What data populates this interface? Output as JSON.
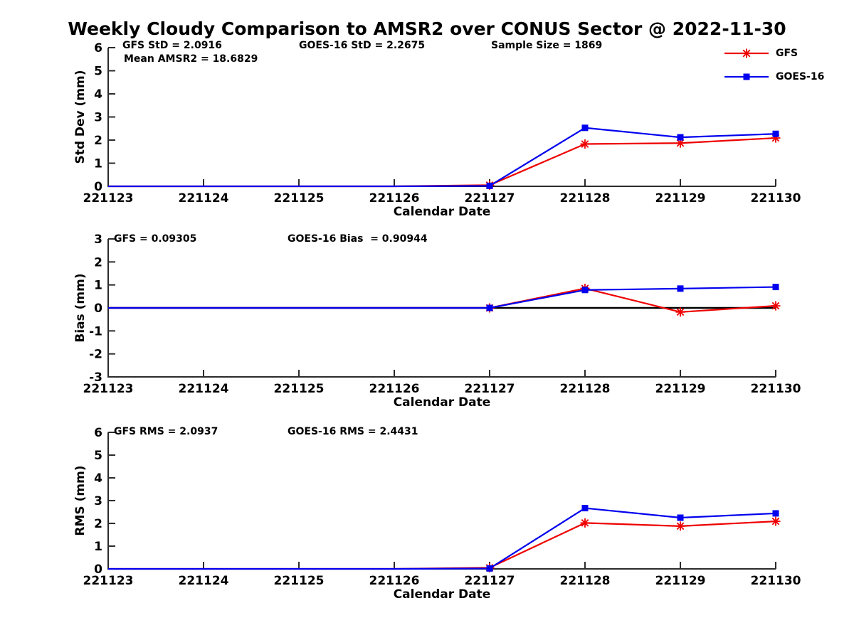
{
  "title": "Weekly Cloudy Comparison to AMSR2 over CONUS Sector @ 2022-11-30",
  "colors": {
    "gfs": "#ee0000",
    "goes": "#0000ee",
    "axis": "#2b2b2b",
    "zero_line": "#000000",
    "text": "#000000"
  },
  "legend": {
    "items": [
      {
        "label": "GFS",
        "marker": "red-asterisk"
      },
      {
        "label": "GOES-16",
        "marker": "blue-square"
      }
    ]
  },
  "chart_data": {
    "type": "line",
    "x_label": "Calendar Date",
    "categories": [
      "221123",
      "221124",
      "221125",
      "221126",
      "221127",
      "221128",
      "221129",
      "221130"
    ],
    "marker_start_index": 4,
    "charts": [
      {
        "name": "std-dev",
        "ylabel": "Std Dev (mm)",
        "ylim": [
          0,
          6
        ],
        "yticks": [
          0,
          1,
          2,
          3,
          4,
          5,
          6
        ],
        "zero_line": false,
        "annotations": [
          "GFS StD = 2.0916",
          "GOES-16 StD = 2.2675",
          "Sample Size = 1869",
          "Mean AMSR2 = 18.6829"
        ],
        "series": [
          {
            "name": "GFS",
            "color_key": "gfs",
            "marker": "asterisk",
            "values": [
              0,
              0,
              0,
              0,
              0.05,
              1.83,
              1.87,
              2.09
            ]
          },
          {
            "name": "GOES-16",
            "color_key": "goes",
            "marker": "square",
            "values": [
              0,
              0,
              0,
              0,
              0.02,
              2.53,
              2.12,
              2.27
            ]
          }
        ]
      },
      {
        "name": "bias",
        "ylabel": "Bias (mm)",
        "ylim": [
          -3,
          3
        ],
        "yticks": [
          -3,
          -2,
          -1,
          0,
          1,
          2,
          3
        ],
        "zero_line": true,
        "annotations": [
          "GFS = 0.09305",
          "GOES-16 Bias  = 0.90944"
        ],
        "series": [
          {
            "name": "GFS",
            "color_key": "gfs",
            "marker": "asterisk",
            "values": [
              0,
              0,
              0,
              0,
              0,
              0.85,
              -0.18,
              0.09
            ]
          },
          {
            "name": "GOES-16",
            "color_key": "goes",
            "marker": "square",
            "values": [
              0,
              0,
              0,
              0,
              0,
              0.78,
              0.84,
              0.91
            ]
          }
        ]
      },
      {
        "name": "rms",
        "ylabel": "RMS (mm)",
        "ylim": [
          0,
          6
        ],
        "yticks": [
          0,
          1,
          2,
          3,
          4,
          5,
          6
        ],
        "zero_line": false,
        "annotations": [
          "GFS RMS = 2.0937",
          "GOES-16 RMS = 2.4431"
        ],
        "series": [
          {
            "name": "GFS",
            "color_key": "gfs",
            "marker": "asterisk",
            "values": [
              0,
              0,
              0,
              0,
              0.05,
              2.02,
              1.88,
              2.09
            ]
          },
          {
            "name": "GOES-16",
            "color_key": "goes",
            "marker": "square",
            "values": [
              0,
              0,
              0,
              0,
              0.02,
              2.67,
              2.25,
              2.44
            ]
          }
        ]
      }
    ]
  }
}
